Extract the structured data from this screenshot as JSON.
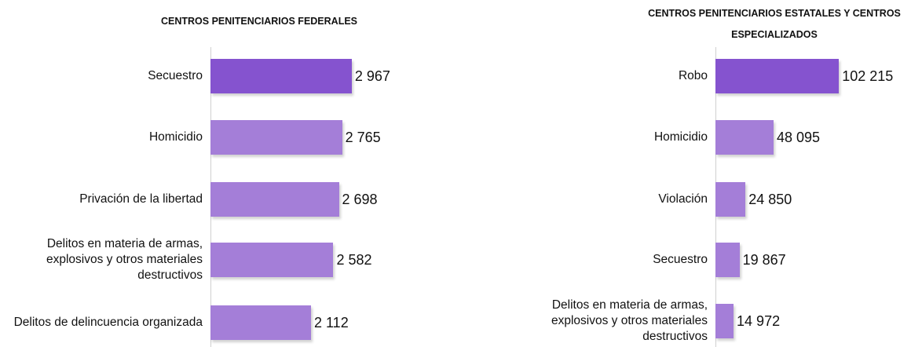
{
  "chart_data": [
    {
      "type": "hbar",
      "title": "CENTROS PENITENCIARIOS FEDERALES",
      "categories": [
        "Secuestro",
        "Homicidio",
        "Privación de la libertad",
        "Delitos en materia de armas, explosivos y otros materiales destructivos",
        "Delitos de delincuencia organizada"
      ],
      "values": [
        2967,
        2765,
        2698,
        2582,
        2112
      ],
      "value_labels": [
        "2 967",
        "2 765",
        "2 698",
        "2 582",
        "2 112"
      ],
      "colors": [
        "#8553cf",
        "#a47ed8",
        "#a47ed8",
        "#a47ed8",
        "#a47ed8"
      ],
      "xlim": [
        0,
        3300
      ]
    },
    {
      "type": "hbar",
      "title": "CENTROS PENITENCIARIOS ESTATALES Y CENTROS ESPECIALIZADOS",
      "categories": [
        "Robo",
        "Homicidio",
        "Violación",
        "Secuestro",
        "Delitos en materia de armas, explosivos y otros materiales destructivos"
      ],
      "values": [
        102215,
        48095,
        24850,
        19867,
        14972
      ],
      "value_labels": [
        "102 215",
        "48 095",
        "24 850",
        "19 867",
        "14 972"
      ],
      "colors": [
        "#8553cf",
        "#a47ed8",
        "#a47ed8",
        "#a47ed8",
        "#a47ed8"
      ],
      "xlim": [
        0,
        130000
      ]
    }
  ]
}
